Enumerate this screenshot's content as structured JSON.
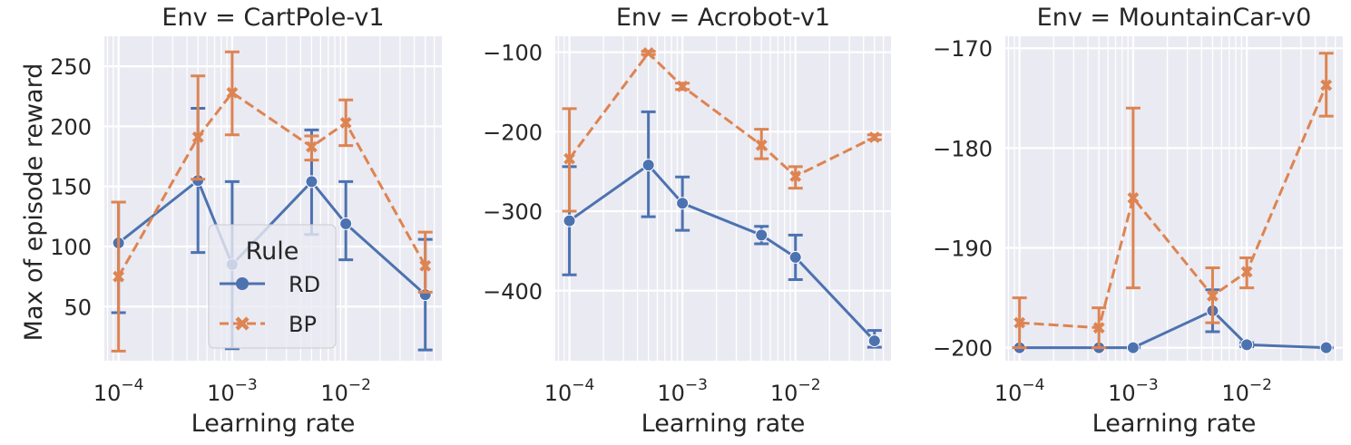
{
  "figure": {
    "xlabel": "Learning rate",
    "ylabel": "Max of episode reward"
  },
  "legend": {
    "title": "Rule",
    "entries": [
      {
        "label": "RD",
        "color": "#4c72b0",
        "marker": "circle",
        "dash": "solid"
      },
      {
        "label": "BP",
        "color": "#dd8452",
        "marker": "x",
        "dash": "dashed"
      }
    ]
  },
  "chart_data": [
    {
      "type": "line",
      "title": "Env = CartPole-v1",
      "xlabel": "Learning rate",
      "ylabel": "Max of episode reward",
      "xscale": "log",
      "xlim": [
        7.5e-05,
        0.07
      ],
      "ylim": [
        5,
        275
      ],
      "xticks": [
        0.0001,
        0.001,
        0.01
      ],
      "xtick_labels": [
        "10",
        "10",
        "10"
      ],
      "xtick_exponents": [
        "−4",
        "−3",
        "−2"
      ],
      "yticks": [
        50,
        100,
        150,
        200,
        250
      ],
      "ytick_labels": [
        "50",
        "100",
        "150",
        "200",
        "250"
      ],
      "grid": true,
      "legend_position": "lower center",
      "x": [
        0.0001,
        0.0005,
        0.001,
        0.005,
        0.01,
        0.05
      ],
      "series": [
        {
          "name": "RD",
          "values": [
            103,
            155,
            85,
            154,
            119,
            60
          ],
          "err_low": [
            45,
            95,
            15,
            110,
            89,
            14
          ],
          "err_high": [
            137,
            215,
            154,
            197,
            154,
            106
          ]
        },
        {
          "name": "BP",
          "values": [
            75,
            191,
            228,
            183,
            203,
            84
          ],
          "err_low": [
            13,
            156,
            193,
            172,
            184,
            62
          ],
          "err_high": [
            137,
            242,
            262,
            192,
            222,
            112
          ]
        }
      ]
    },
    {
      "type": "line",
      "title": "Env = Acrobot-v1",
      "xlabel": "Learning rate",
      "ylabel": "",
      "xscale": "log",
      "xlim": [
        7.5e-05,
        0.07
      ],
      "ylim": [
        -488,
        -80
      ],
      "xticks": [
        0.0001,
        0.001,
        0.01
      ],
      "xtick_labels": [
        "10",
        "10",
        "10"
      ],
      "xtick_exponents": [
        "−4",
        "−3",
        "−2"
      ],
      "yticks": [
        -400,
        -300,
        -200,
        -100
      ],
      "ytick_labels": [
        "−400",
        "−300",
        "−200",
        "−100"
      ],
      "grid": true,
      "x": [
        0.0001,
        0.0005,
        0.001,
        0.005,
        0.01,
        0.05
      ],
      "series": [
        {
          "name": "RD",
          "values": [
            -312,
            -242,
            -290,
            -330,
            -358,
            -463
          ],
          "err_low": [
            -380,
            -307,
            -324,
            -341,
            -386,
            -471
          ],
          "err_high": [
            -244,
            -175,
            -257,
            -319,
            -330,
            -450
          ]
        },
        {
          "name": "BP",
          "values": [
            -234,
            -101,
            -143,
            -217,
            -256,
            -207
          ],
          "err_low": [
            -300,
            -103,
            -147,
            -234,
            -271,
            -210
          ],
          "err_high": [
            -171,
            -99,
            -139,
            -197,
            -244,
            -204
          ]
        }
      ]
    },
    {
      "type": "line",
      "title": "Env = MountainCar-v0",
      "xlabel": "Learning rate",
      "ylabel": "",
      "xscale": "log",
      "xlim": [
        7.5e-05,
        0.07
      ],
      "ylim": [
        -201.3,
        -168.8
      ],
      "xticks": [
        0.0001,
        0.001,
        0.01
      ],
      "xtick_labels": [
        "10",
        "10",
        "10"
      ],
      "xtick_exponents": [
        "−4",
        "−3",
        "−2"
      ],
      "yticks": [
        -200,
        -190,
        -180,
        -170
      ],
      "ytick_labels": [
        "−200",
        "−190",
        "−180",
        "−170"
      ],
      "grid": true,
      "x": [
        0.0001,
        0.0005,
        0.001,
        0.005,
        0.01,
        0.05
      ],
      "series": [
        {
          "name": "RD",
          "values": [
            -200,
            -200,
            -200,
            -196.3,
            -199.7,
            -200
          ],
          "err_low": [
            -200,
            -200,
            -200,
            -198.4,
            -199.9,
            -200
          ],
          "err_high": [
            -200,
            -200,
            -200,
            -194.2,
            -199.5,
            -200
          ]
        },
        {
          "name": "BP",
          "values": [
            -197.5,
            -198,
            -185,
            -194.8,
            -192.4,
            -173.7
          ],
          "err_low": [
            -200,
            -200,
            -194,
            -197.5,
            -194,
            -176.8
          ],
          "err_high": [
            -195,
            -196,
            -176,
            -192,
            -191,
            -170.5
          ]
        }
      ]
    }
  ]
}
